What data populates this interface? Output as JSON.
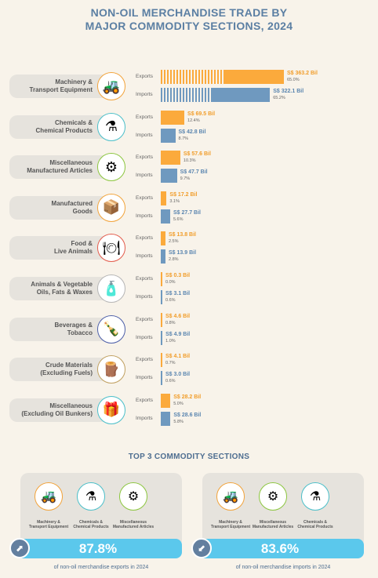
{
  "title_line1": "NON-OIL MERCHANDISE TRADE BY",
  "title_line2": "MAJOR COMMODITY SECTIONS, 2024",
  "exports_label": "Exports",
  "imports_label": "Imports",
  "colors": {
    "exports": "#fbaa3c",
    "imports": "#6f99bf",
    "accent": "#5bc8ec"
  },
  "chart_data": {
    "type": "bar",
    "orientation": "horizontal",
    "unit": "S$ Bil",
    "categories": [
      {
        "line1": "Machinery &",
        "line2": "Transport Equipment",
        "icon": "excavator-icon",
        "exports": 363.2,
        "imports": 322.1,
        "exports_text": "S$ 363.2 Bil",
        "imports_text": "S$ 322.1 Bil",
        "exports_pct": "65.0%",
        "imports_pct": "65.2%"
      },
      {
        "line1": "Chemicals &",
        "line2": "Chemical Products",
        "icon": "flask-icon",
        "exports": 69.5,
        "imports": 42.8,
        "exports_text": "S$ 69.5 Bil",
        "imports_text": "S$ 42.8 Bil",
        "exports_pct": "12.4%",
        "imports_pct": "8.7%"
      },
      {
        "line1": "Miscellaneous",
        "line2": "Manufactured Articles",
        "icon": "gears-icon",
        "exports": 57.6,
        "imports": 47.7,
        "exports_text": "S$ 57.6 Bil",
        "imports_text": "S$ 47.7 Bil",
        "exports_pct": "10.3%",
        "imports_pct": "9.7%"
      },
      {
        "line1": "Manufactured",
        "line2": "Goods",
        "icon": "box-icon",
        "exports": 17.2,
        "imports": 27.7,
        "exports_text": "S$ 17.2 Bil",
        "imports_text": "S$ 27.7 Bil",
        "exports_pct": "3.1%",
        "imports_pct": "5.6%"
      },
      {
        "line1": "Food &",
        "line2": "Live Animals",
        "icon": "food-plate-icon",
        "exports": 13.8,
        "imports": 13.9,
        "exports_text": "S$ 13.8 Bil",
        "imports_text": "S$ 13.9 Bil",
        "exports_pct": "2.5%",
        "imports_pct": "2.8%"
      },
      {
        "line1": "Animals & Vegetable",
        "line2": "Oils, Fats & Waxes",
        "icon": "oil-bottle-icon",
        "exports": 0.3,
        "imports": 3.1,
        "exports_text": "S$ 0.3 Bil",
        "imports_text": "S$ 3.1 Bil",
        "exports_pct": "0.0%",
        "imports_pct": "0.6%"
      },
      {
        "line1": "Beverages &",
        "line2": "Tobacco",
        "icon": "bottle-icon",
        "exports": 4.6,
        "imports": 4.9,
        "exports_text": "S$ 4.6 Bil",
        "imports_text": "S$ 4.9 Bil",
        "exports_pct": "0.8%",
        "imports_pct": "1.0%"
      },
      {
        "line1": "Crude Materials",
        "line2": "(Excluding Fuels)",
        "icon": "wood-icon",
        "exports": 4.1,
        "imports": 3.0,
        "exports_text": "S$ 4.1 Bil",
        "imports_text": "S$ 3.0 Bil",
        "exports_pct": "0.7%",
        "imports_pct": "0.6%"
      },
      {
        "line1": "Miscellaneous",
        "line2": "(Excluding Oil Bunkers)",
        "icon": "parcel-icon",
        "exports": 28.2,
        "imports": 28.6,
        "exports_text": "S$ 28.2 Bil",
        "imports_text": "S$ 28.6 Bil",
        "exports_pct": "5.0%",
        "imports_pct": "5.8%"
      }
    ]
  },
  "top3": {
    "title": "TOP 3 COMMODITY SECTIONS",
    "exports": {
      "items": [
        {
          "line1": "Machinery &",
          "line2": "Transport Equipment",
          "icon": "excavator-icon"
        },
        {
          "line1": "Chemicals &",
          "line2": "Chemical Products",
          "icon": "flask-icon"
        },
        {
          "line1": "Miscellaneous",
          "line2": "Manufactured Articles",
          "icon": "gears-icon"
        }
      ],
      "share": "87.8%",
      "caption": "of non-oil merchandise exports in 2024"
    },
    "imports": {
      "items": [
        {
          "line1": "Machinery &",
          "line2": "Transport Equipment",
          "icon": "excavator-icon"
        },
        {
          "line1": "Miscellaneous",
          "line2": "Manufactured Articles",
          "icon": "gears-icon"
        },
        {
          "line1": "Chemicals &",
          "line2": "Chemical Products",
          "icon": "flask-icon"
        }
      ],
      "share": "83.6%",
      "caption": "of non-oil merchandise imports in 2024"
    }
  }
}
